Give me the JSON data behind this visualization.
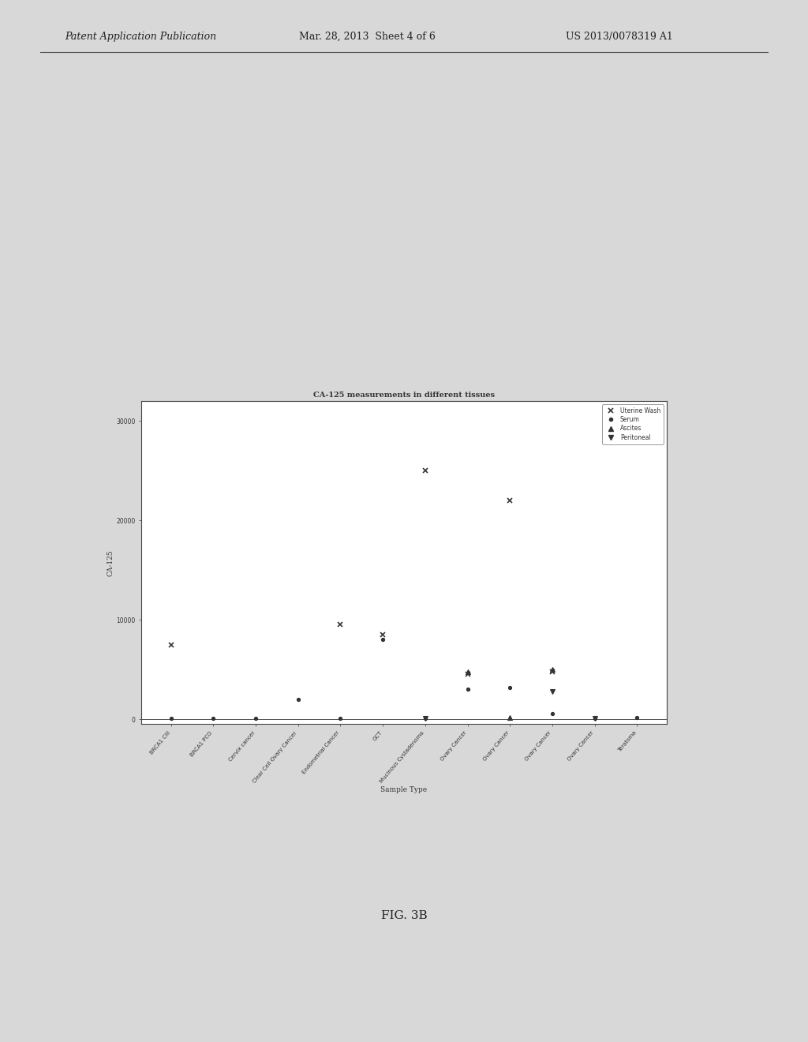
{
  "title": "CA-125 measurements in different tissues",
  "xlabel": "Sample Type",
  "ylabel": "CA-125",
  "ylim": [
    -500,
    32000
  ],
  "yticks": [
    0,
    10000,
    20000,
    30000
  ],
  "categories": [
    "BRCA1 CIII",
    "BRCA1 PCO",
    "Cervix cancer",
    "Clear Cell Ovary Cancer",
    "Endometrial Cancer",
    "GCT",
    "Mucinous Cystadenoma",
    "Ovary Cancer",
    "Ovary Cancer",
    "Ovary Cancer",
    "Ovary Cancer",
    "Teratoma"
  ],
  "legend_labels": [
    "Uterine Wash",
    "Serum",
    "Ascites",
    "Peritoneal"
  ],
  "legend_markers": [
    "x",
    "o",
    "^",
    "v"
  ],
  "data_points": {
    "Uterine Wash": {
      "categories": [
        0,
        4,
        5,
        6,
        7,
        8,
        9
      ],
      "values": [
        7500,
        9500,
        8500,
        25000,
        4500,
        22000,
        4800
      ]
    },
    "Serum": {
      "categories": [
        0,
        1,
        2,
        3,
        4,
        5,
        6,
        7,
        8,
        9,
        10,
        11
      ],
      "values": [
        100,
        100,
        100,
        2000,
        100,
        8000,
        100,
        3000,
        3200,
        600,
        100,
        200
      ]
    },
    "Ascites": {
      "categories": [
        7,
        8,
        9
      ],
      "values": [
        4800,
        200,
        5000
      ]
    },
    "Peritoneal": {
      "categories": [
        6,
        9,
        10
      ],
      "values": [
        100,
        2800,
        100
      ]
    }
  },
  "background_color": "#d8d8d8",
  "plot_bg_color": "#ffffff",
  "border_color": "#555555",
  "text_color": "#333333",
  "marker_color": "#333333",
  "fig_text": {
    "patent_left": "Patent Application Publication",
    "patent_center": "Mar. 28, 2013  Sheet 4 of 6",
    "patent_right": "US 2013/0078319 A1"
  },
  "fig_label": "FIG. 3B"
}
